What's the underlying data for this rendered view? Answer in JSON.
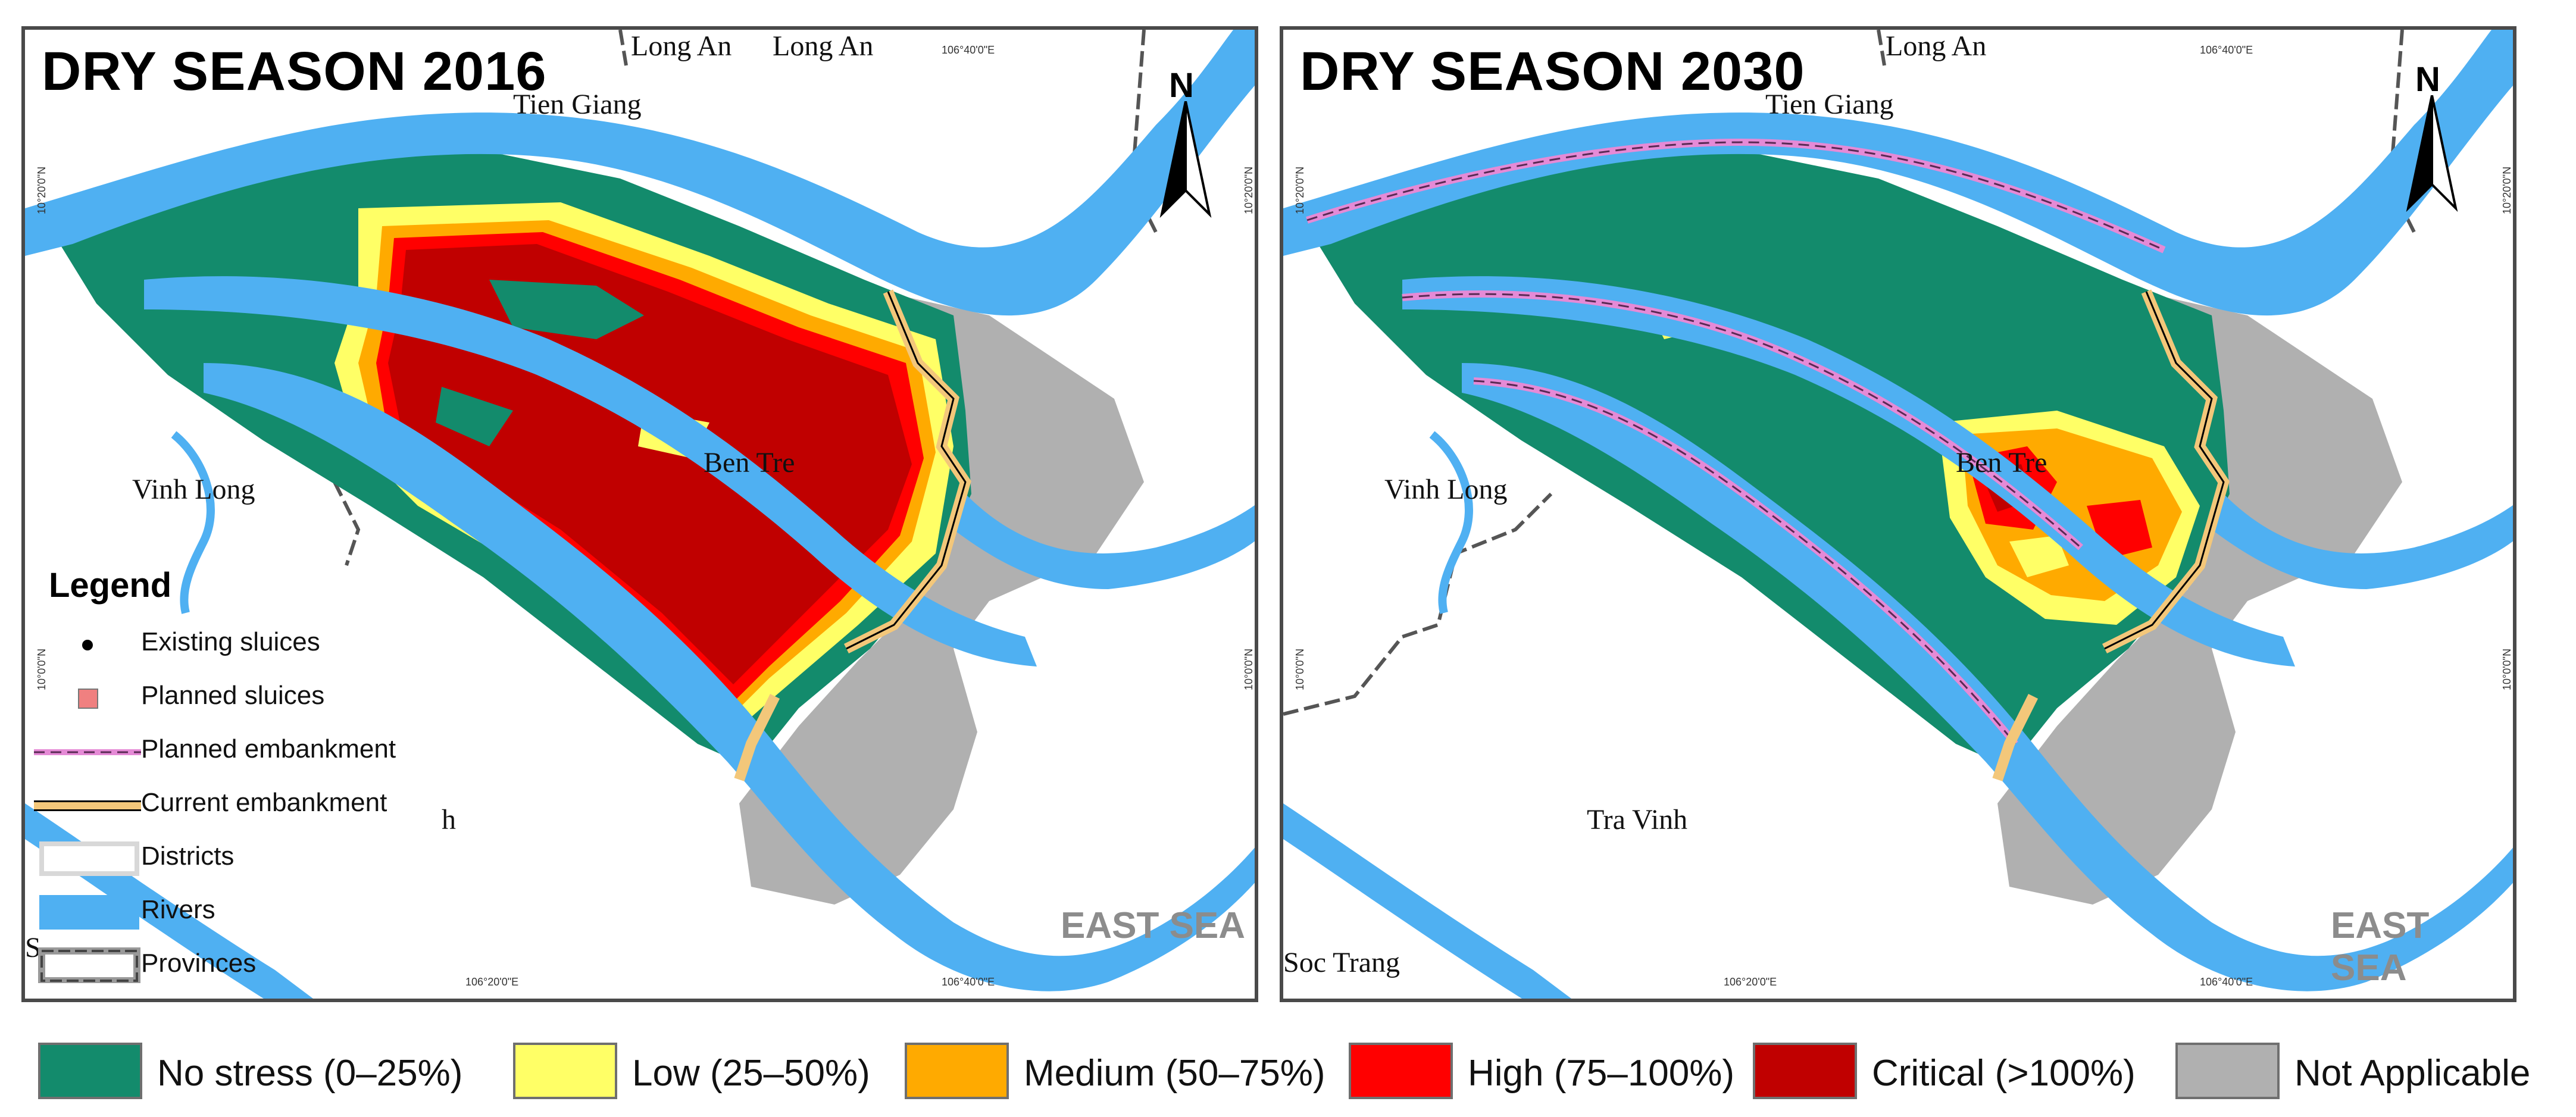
{
  "panels": [
    {
      "title": "DRY SEASON 2016",
      "places": {
        "long_an_1": "Long An",
        "long_an_2": "Long An",
        "tien_giang": "Tien Giang",
        "vinh_long": "Vinh Long",
        "ben_tre": "Ben Tre",
        "tra_vinh_partial": "h",
        "soc_trang_partial": "S"
      },
      "sea_label": "EAST SEA",
      "coords": {
        "top": "106°40'0\"E",
        "bottom_1": "106°20'0\"E",
        "bottom_2": "106°40'0\"E",
        "left_1": "10°20'0\"N",
        "left_2": "10°0'0\"N",
        "right_1": "10°20'0\"N",
        "right_2": "10°0'0\"N"
      },
      "north": "N"
    },
    {
      "title": "DRY SEASON 2030",
      "places": {
        "long_an": "Long An",
        "tien_giang": "Tien Giang",
        "vinh_long": "Vinh Long",
        "ben_tre": "Ben Tre",
        "tra_vinh": "Tra Vinh",
        "soc_trang": "Soc Trang"
      },
      "sea_label": "EAST SEA",
      "coords": {
        "top": "106°40'0\"E",
        "bottom_1": "106°20'0\"E",
        "bottom_2": "106°40'0\"E",
        "left_1": "10°20'0\"N",
        "left_2": "10°0'0\"N",
        "right_1": "10°20'0\"N",
        "right_2": "10°0'0\"N"
      },
      "north": "N"
    }
  ],
  "map_legend": {
    "title": "Legend",
    "items": [
      {
        "label": "Existing sluices",
        "icon": "black-dot"
      },
      {
        "label": "Planned sluices",
        "icon": "pink-square"
      },
      {
        "label": "Planned embankment",
        "icon": "pink-dashed-line"
      },
      {
        "label": "Current embankment",
        "icon": "orange-outlined-line"
      },
      {
        "label": "Districts",
        "icon": "white-box"
      },
      {
        "label": "Rivers",
        "icon": "blue-box"
      },
      {
        "label": "Provinces",
        "icon": "dashed-box"
      }
    ]
  },
  "stress_classes": [
    {
      "label": "No stress (0–25%)",
      "color": "#138b6c"
    },
    {
      "label": "Low (25–50%)",
      "color": "#ffff66"
    },
    {
      "label": "Medium (50–75%)",
      "color": "#ffaa00"
    },
    {
      "label": "High (75–100%)",
      "color": "#ff0000"
    },
    {
      "label": "Critical (>100%)",
      "color": "#c00000"
    },
    {
      "label": "Not Applicable",
      "color": "#b0b0b0"
    }
  ],
  "colors": {
    "river": "#4fb0f2",
    "no_stress": "#138b6c",
    "low": "#ffff66",
    "medium": "#ffaa00",
    "high": "#ff0000",
    "critical": "#c00000",
    "not_applicable": "#b0b0b0",
    "current_embankment": "#f3c77a",
    "planned_embankment": "#e58ad6"
  }
}
